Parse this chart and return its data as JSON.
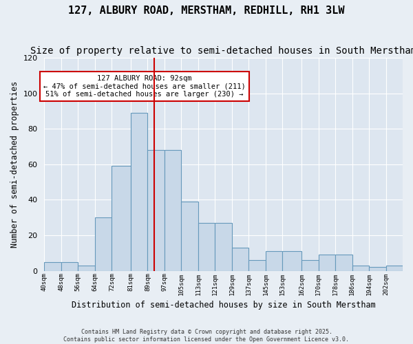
{
  "title": "127, ALBURY ROAD, MERSTHAM, REDHILL, RH1 3LW",
  "subtitle": "Size of property relative to semi-detached houses in South Merstham",
  "xlabel": "Distribution of semi-detached houses by size in South Merstham",
  "ylabel": "Number of semi-detached properties",
  "annotation_title": "127 ALBURY ROAD: 92sqm",
  "annotation_line1": "← 47% of semi-detached houses are smaller (211)",
  "annotation_line2": "51% of semi-detached houses are larger (230) →",
  "footer_line1": "Contains HM Land Registry data © Crown copyright and database right 2025.",
  "footer_line2": "Contains public sector information licensed under the Open Government Licence v3.0.",
  "bin_labels": [
    "40sqm",
    "48sqm",
    "56sqm",
    "64sqm",
    "72sqm",
    "81sqm",
    "89sqm",
    "97sqm",
    "105sqm",
    "113sqm",
    "121sqm",
    "129sqm",
    "137sqm",
    "145sqm",
    "153sqm",
    "162sqm",
    "170sqm",
    "178sqm",
    "186sqm",
    "194sqm",
    "202sqm"
  ],
  "bar_heights": [
    5,
    5,
    3,
    30,
    59,
    89,
    68,
    68,
    39,
    27,
    27,
    13,
    6,
    11,
    11,
    6,
    9,
    9,
    3,
    2,
    3
  ],
  "bin_edges": [
    40,
    48,
    56,
    64,
    72,
    81,
    89,
    97,
    105,
    113,
    121,
    129,
    137,
    145,
    153,
    162,
    170,
    178,
    186,
    194,
    202,
    210
  ],
  "property_size": 92,
  "bar_color": "#c8d8e8",
  "bar_edge_color": "#6699bb",
  "vline_color": "#cc0000",
  "annotation_box_color": "#cc0000",
  "fig_background": "#e8eef4",
  "plot_background": "#dde6f0",
  "ylim": [
    0,
    120
  ],
  "yticks": [
    0,
    20,
    40,
    60,
    80,
    100,
    120
  ],
  "title_fontsize": 11,
  "subtitle_fontsize": 10,
  "xlabel_fontsize": 8.5,
  "ylabel_fontsize": 8.5
}
